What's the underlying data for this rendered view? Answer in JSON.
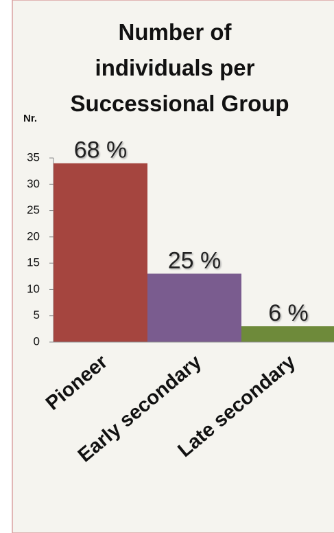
{
  "chart_data": {
    "type": "bar",
    "title": [
      "Number of",
      "individuals per",
      "Successional Group"
    ],
    "y_label": "Nr.",
    "categories": [
      "Pioneer",
      "Early secondary",
      "Late secondary"
    ],
    "values": [
      34,
      13,
      3
    ],
    "bar_labels": [
      "68 %",
      "25 %",
      "6 %"
    ],
    "colors": [
      "#a5453f",
      "#7a5c8f",
      "#6e8a3a"
    ],
    "ylim": [
      0,
      35
    ],
    "yticks": [
      0,
      5,
      10,
      15,
      20,
      25,
      30,
      35
    ],
    "grid": false
  }
}
